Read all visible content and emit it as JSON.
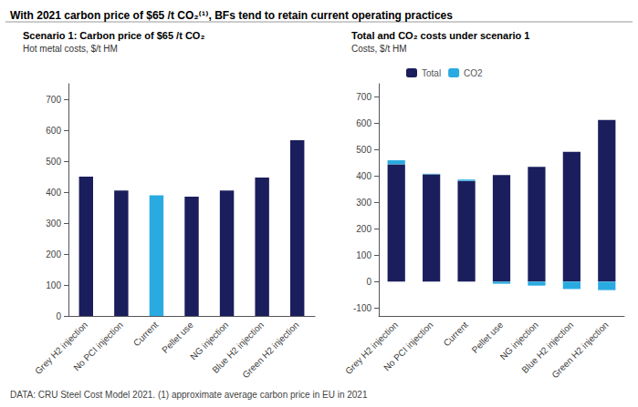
{
  "title": "With 2021 carbon price of $65 /t CO₂⁽¹⁾, BFs tend to retain current operating practices",
  "annotations": [
    "DATA: CRU Steel Cost Model 2021. (1) approximate average carbon price in EU in 2021"
  ],
  "chart_data": [
    {
      "type": "bar",
      "title": "Scenario 1: Carbon price of $65 /t CO₂",
      "subtitle": "Hot metal costs, $/t HM",
      "categories": [
        "Grey H2 injection",
        "No PCI injection",
        "Current",
        "Pellet use",
        "NG injection",
        "Blue H2 injection",
        "Green H2 injection"
      ],
      "values": [
        450,
        405,
        390,
        385,
        405,
        447,
        568
      ],
      "colors": [
        "#1b1e5c",
        "#1b1e5c",
        "#29abe2",
        "#1b1e5c",
        "#1b1e5c",
        "#1b1e5c",
        "#1b1e5c"
      ],
      "ylim": [
        0,
        750
      ],
      "yticks": [
        0,
        100,
        200,
        300,
        400,
        500,
        600,
        700
      ],
      "grid": false
    },
    {
      "type": "bar",
      "title": "Total and CO₂ costs under scenario 1",
      "subtitle": "Costs, $/t HM",
      "categories": [
        "Grey H2 injection",
        "No PCI injection",
        "Current",
        "Pellet use",
        "NG injection",
        "Blue H2 injection",
        "Green H2 injection"
      ],
      "series": [
        {
          "name": "Total",
          "color": "#1b1e5c",
          "values": [
            445,
            407,
            382,
            404,
            435,
            492,
            613
          ]
        },
        {
          "name": "CO2",
          "color": "#29abe2",
          "values": [
            15,
            2,
            5,
            -8,
            -15,
            -28,
            -32
          ]
        }
      ],
      "stacked": true,
      "legend": "top",
      "ylim": [
        -130,
        750
      ],
      "yticks": [
        -100,
        0,
        100,
        200,
        300,
        400,
        500,
        600,
        700
      ],
      "grid": false
    }
  ]
}
